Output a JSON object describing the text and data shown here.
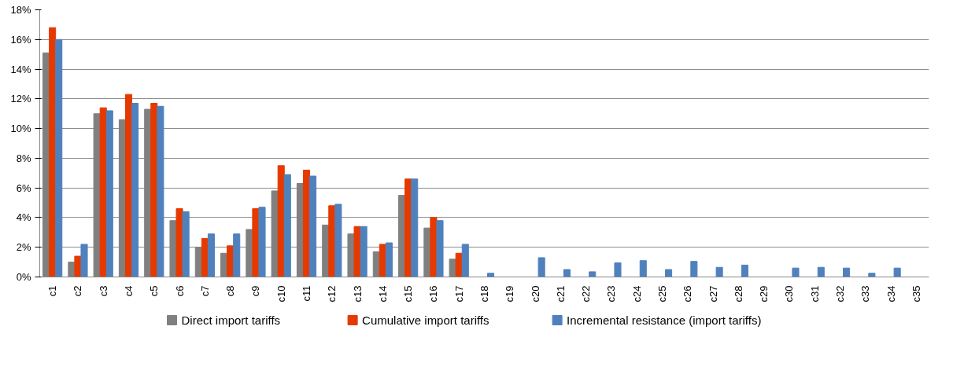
{
  "chart_data": {
    "type": "bar",
    "categories": [
      "c1",
      "c2",
      "c3",
      "c4",
      "c5",
      "c6",
      "c7",
      "c8",
      "c9",
      "c10",
      "c11",
      "c12",
      "c13",
      "c14",
      "c15",
      "c16",
      "c17",
      "c18",
      "c19",
      "c20",
      "c21",
      "c22",
      "c23",
      "c24",
      "c25",
      "c26",
      "c27",
      "c28",
      "c29",
      "c30",
      "c31",
      "c32",
      "c33",
      "c34",
      "c35"
    ],
    "series": [
      {
        "name": "Direct import tariffs",
        "color": "#808080",
        "values": [
          15.1,
          1.0,
          11.0,
          10.6,
          11.3,
          3.8,
          2.0,
          1.6,
          3.2,
          5.8,
          6.3,
          3.5,
          2.9,
          1.7,
          5.5,
          3.3,
          1.2,
          null,
          null,
          null,
          null,
          null,
          null,
          null,
          null,
          null,
          null,
          null,
          null,
          null,
          null,
          null,
          null,
          null,
          null
        ]
      },
      {
        "name": "Cumulative import tariffs",
        "color": "#e63900",
        "values": [
          16.8,
          1.4,
          11.4,
          12.3,
          11.7,
          4.6,
          2.6,
          2.1,
          4.6,
          7.5,
          7.2,
          4.8,
          3.4,
          2.2,
          6.6,
          4.0,
          1.6,
          null,
          null,
          null,
          null,
          null,
          null,
          null,
          null,
          null,
          null,
          null,
          null,
          null,
          null,
          null,
          null,
          null,
          null
        ]
      },
      {
        "name": "Incremental resistance (import tariffs)",
        "color": "#4f81bd",
        "values": [
          16.0,
          2.2,
          11.2,
          11.7,
          11.5,
          4.4,
          2.9,
          2.9,
          4.7,
          6.9,
          6.8,
          4.9,
          3.4,
          2.3,
          6.6,
          3.8,
          2.2,
          0.25,
          null,
          1.3,
          0.5,
          0.35,
          0.95,
          1.1,
          0.5,
          1.05,
          0.65,
          0.8,
          null,
          0.6,
          0.65,
          0.6,
          0.25,
          0.6,
          null
        ]
      }
    ],
    "ylim": [
      0,
      18
    ],
    "yticks": [
      {
        "value": 0,
        "label": "0%"
      },
      {
        "value": 2,
        "label": "2%"
      },
      {
        "value": 4,
        "label": "4%"
      },
      {
        "value": 6,
        "label": "6%"
      },
      {
        "value": 8,
        "label": "8%"
      },
      {
        "value": 10,
        "label": "10%"
      },
      {
        "value": 12,
        "label": "12%"
      },
      {
        "value": 14,
        "label": "14%"
      },
      {
        "value": 16,
        "label": "16%"
      },
      {
        "value": 18,
        "label": "18%"
      }
    ],
    "grid": "y",
    "legend": "bottom"
  }
}
